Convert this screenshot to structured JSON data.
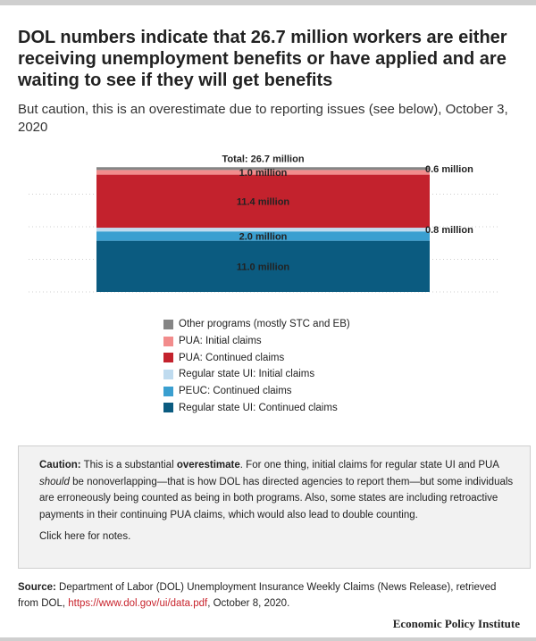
{
  "title": "DOL numbers indicate that 26.7 million workers are either receiving unemployment benefits or have applied and are waiting to see if they will get benefits",
  "subtitle": "But caution, this is an overestimate due to reporting issues (see below), October 3, 2020",
  "chart_data": {
    "type": "bar",
    "stacked": true,
    "categories": [
      ""
    ],
    "total_label": "Total: 26.7 million",
    "unit": "million",
    "ylim": [
      0,
      28
    ],
    "grid": true,
    "legend_position": "bottom",
    "series": [
      {
        "name": "Regular state UI: Continued claims",
        "values": [
          11.0
        ],
        "color": "#0b5b80",
        "label": "11.0 million",
        "label_position": "inside"
      },
      {
        "name": "PEUC: Continued claims",
        "values": [
          2.0
        ],
        "color": "#3a9fd0",
        "label": "2.0 million",
        "label_position": "inside"
      },
      {
        "name": "Regular state UI: Initial claims",
        "values": [
          0.8
        ],
        "color": "#bfdbef",
        "label": "0.8 million",
        "label_position": "outside"
      },
      {
        "name": "PUA: Continued claims",
        "values": [
          11.4
        ],
        "color": "#c3222d",
        "label": "11.4 million",
        "label_position": "inside"
      },
      {
        "name": "PUA: Initial claims",
        "values": [
          1.0
        ],
        "color": "#f28c8c",
        "label": "1.0 million",
        "label_position": "inside"
      },
      {
        "name": "Other programs (mostly STC and EB)",
        "values": [
          0.6
        ],
        "color": "#858585",
        "label": "0.6 million",
        "label_position": "outside"
      }
    ]
  },
  "legend": [
    {
      "label": "Other programs (mostly STC and EB)",
      "color": "#858585"
    },
    {
      "label": "PUA: Initial claims",
      "color": "#f28c8c"
    },
    {
      "label": "PUA: Continued claims",
      "color": "#c3222d"
    },
    {
      "label": "Regular state UI: Initial claims",
      "color": "#bfdbef"
    },
    {
      "label": "PEUC: Continued claims",
      "color": "#3a9fd0"
    },
    {
      "label": "Regular state UI: Continued claims",
      "color": "#0b5b80"
    }
  ],
  "caution": {
    "lead": "Caution:",
    "part1": " This is a substantial ",
    "emphasis": "overestimate",
    "part2": ". For one thing, initial claims for regular state UI and PUA ",
    "italic": "should",
    "part3": " be nonoverlapping—that is how DOL has directed agencies to report them—but some individuals are erroneously being counted as being in both programs. Also, some states are including  retroactive payments in their continuing PUA claims, which would also lead to double counting.",
    "notes_link": "Click here for notes."
  },
  "source": {
    "lead": "Source:",
    "text": " Department of Labor (DOL) Unemployment Insurance Weekly Claims (News Release), retrieved from DOL, ",
    "link": "https://www.dol.gov/ui/data.pdf",
    "tail": ", October 8, 2020."
  },
  "brand": "Economic Policy Institute"
}
